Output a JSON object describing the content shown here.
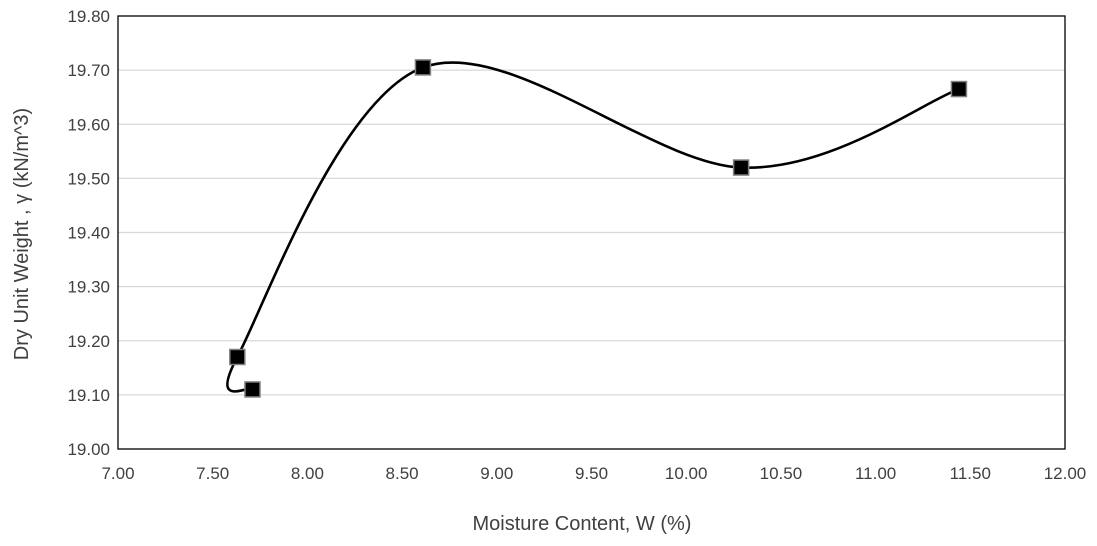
{
  "chart_data": {
    "type": "scatter",
    "xlabel": "Moisture Content, W (%)",
    "ylabel": "Dry Unit Weight ,  γ   (kN/m^3)",
    "xlim": [
      7.0,
      12.0
    ],
    "ylim": [
      19.0,
      19.8
    ],
    "x_ticks": [
      "7.00",
      "7.50",
      "8.00",
      "8.50",
      "9.00",
      "9.50",
      "10.00",
      "10.50",
      "11.00",
      "11.50",
      "12.00"
    ],
    "y_ticks": [
      "19.00",
      "19.10",
      "19.20",
      "19.30",
      "19.40",
      "19.50",
      "19.60",
      "19.70",
      "19.80"
    ],
    "grid": "horizontal",
    "line_style": "smooth",
    "marker": "square",
    "series": [
      {
        "x": [
          7.71,
          7.63,
          8.61,
          10.29,
          11.44
        ],
        "y": [
          19.11,
          19.17,
          19.705,
          19.52,
          19.665
        ]
      }
    ],
    "colors": {
      "line": "#000000",
      "marker": "#000000",
      "marker_edge": "#7f7f7f",
      "grid": "#d9d9d9",
      "axis": "#000000",
      "text": "#404040"
    }
  }
}
